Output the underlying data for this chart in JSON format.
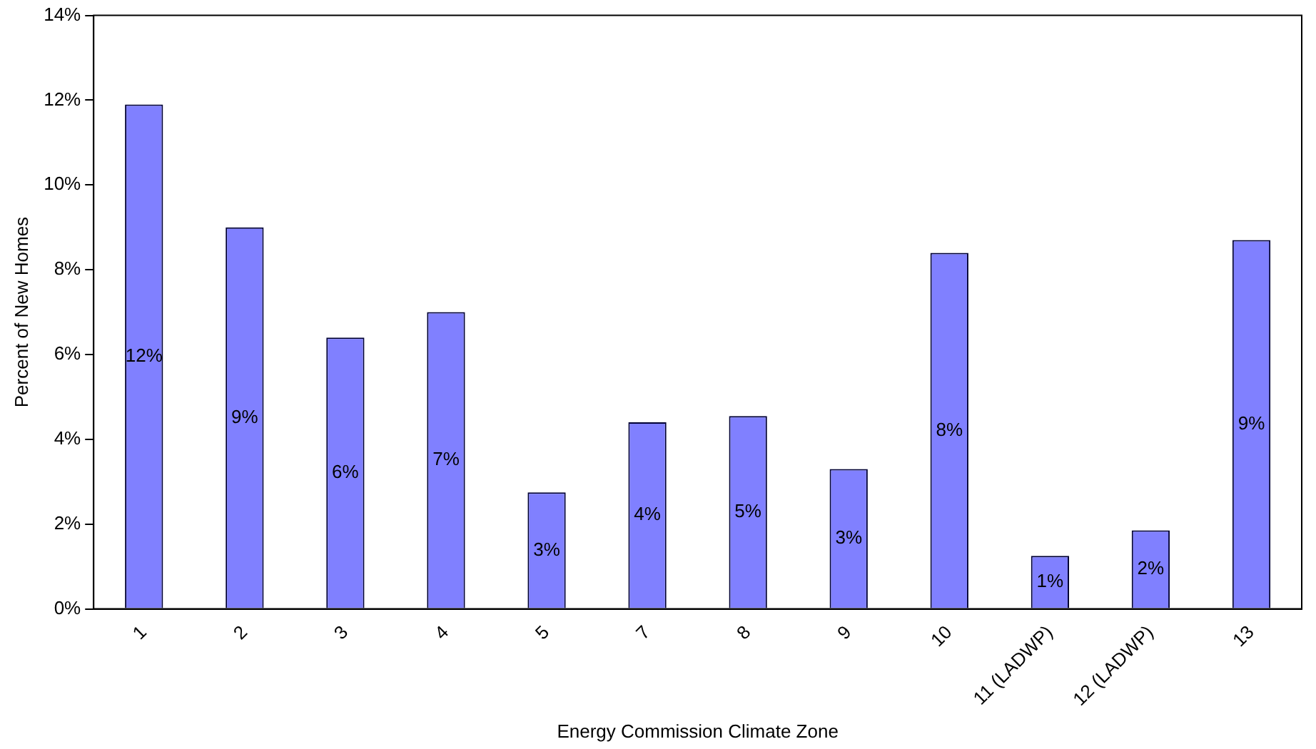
{
  "chart_data": {
    "type": "bar",
    "xlabel": "Energy Commission Climate Zone",
    "ylabel": "Percent of New Homes",
    "categories": [
      "1",
      "2",
      "3",
      "4",
      "5",
      "7",
      "8",
      "9",
      "10",
      "11 (LADWP)",
      "12 (LADWP)",
      "13"
    ],
    "values": [
      11.9,
      9.0,
      6.4,
      7.0,
      2.75,
      4.4,
      4.55,
      3.3,
      8.4,
      1.25,
      1.85,
      8.7
    ],
    "value_labels": [
      "12%",
      "9%",
      "6%",
      "7%",
      "3%",
      "4%",
      "5%",
      "3%",
      "8%",
      "1%",
      "2%",
      "9%"
    ],
    "color": "#8080ff",
    "ylim": [
      0,
      14
    ],
    "yticks": [
      {
        "value": 0,
        "label": "0%"
      },
      {
        "value": 2,
        "label": "2%"
      },
      {
        "value": 4,
        "label": "4%"
      },
      {
        "value": 6,
        "label": "6%"
      },
      {
        "value": 8,
        "label": "8%"
      },
      {
        "value": 10,
        "label": "10%"
      },
      {
        "value": 12,
        "label": "12%"
      },
      {
        "value": 14,
        "label": "14%"
      }
    ],
    "grid": false,
    "legend": false
  }
}
